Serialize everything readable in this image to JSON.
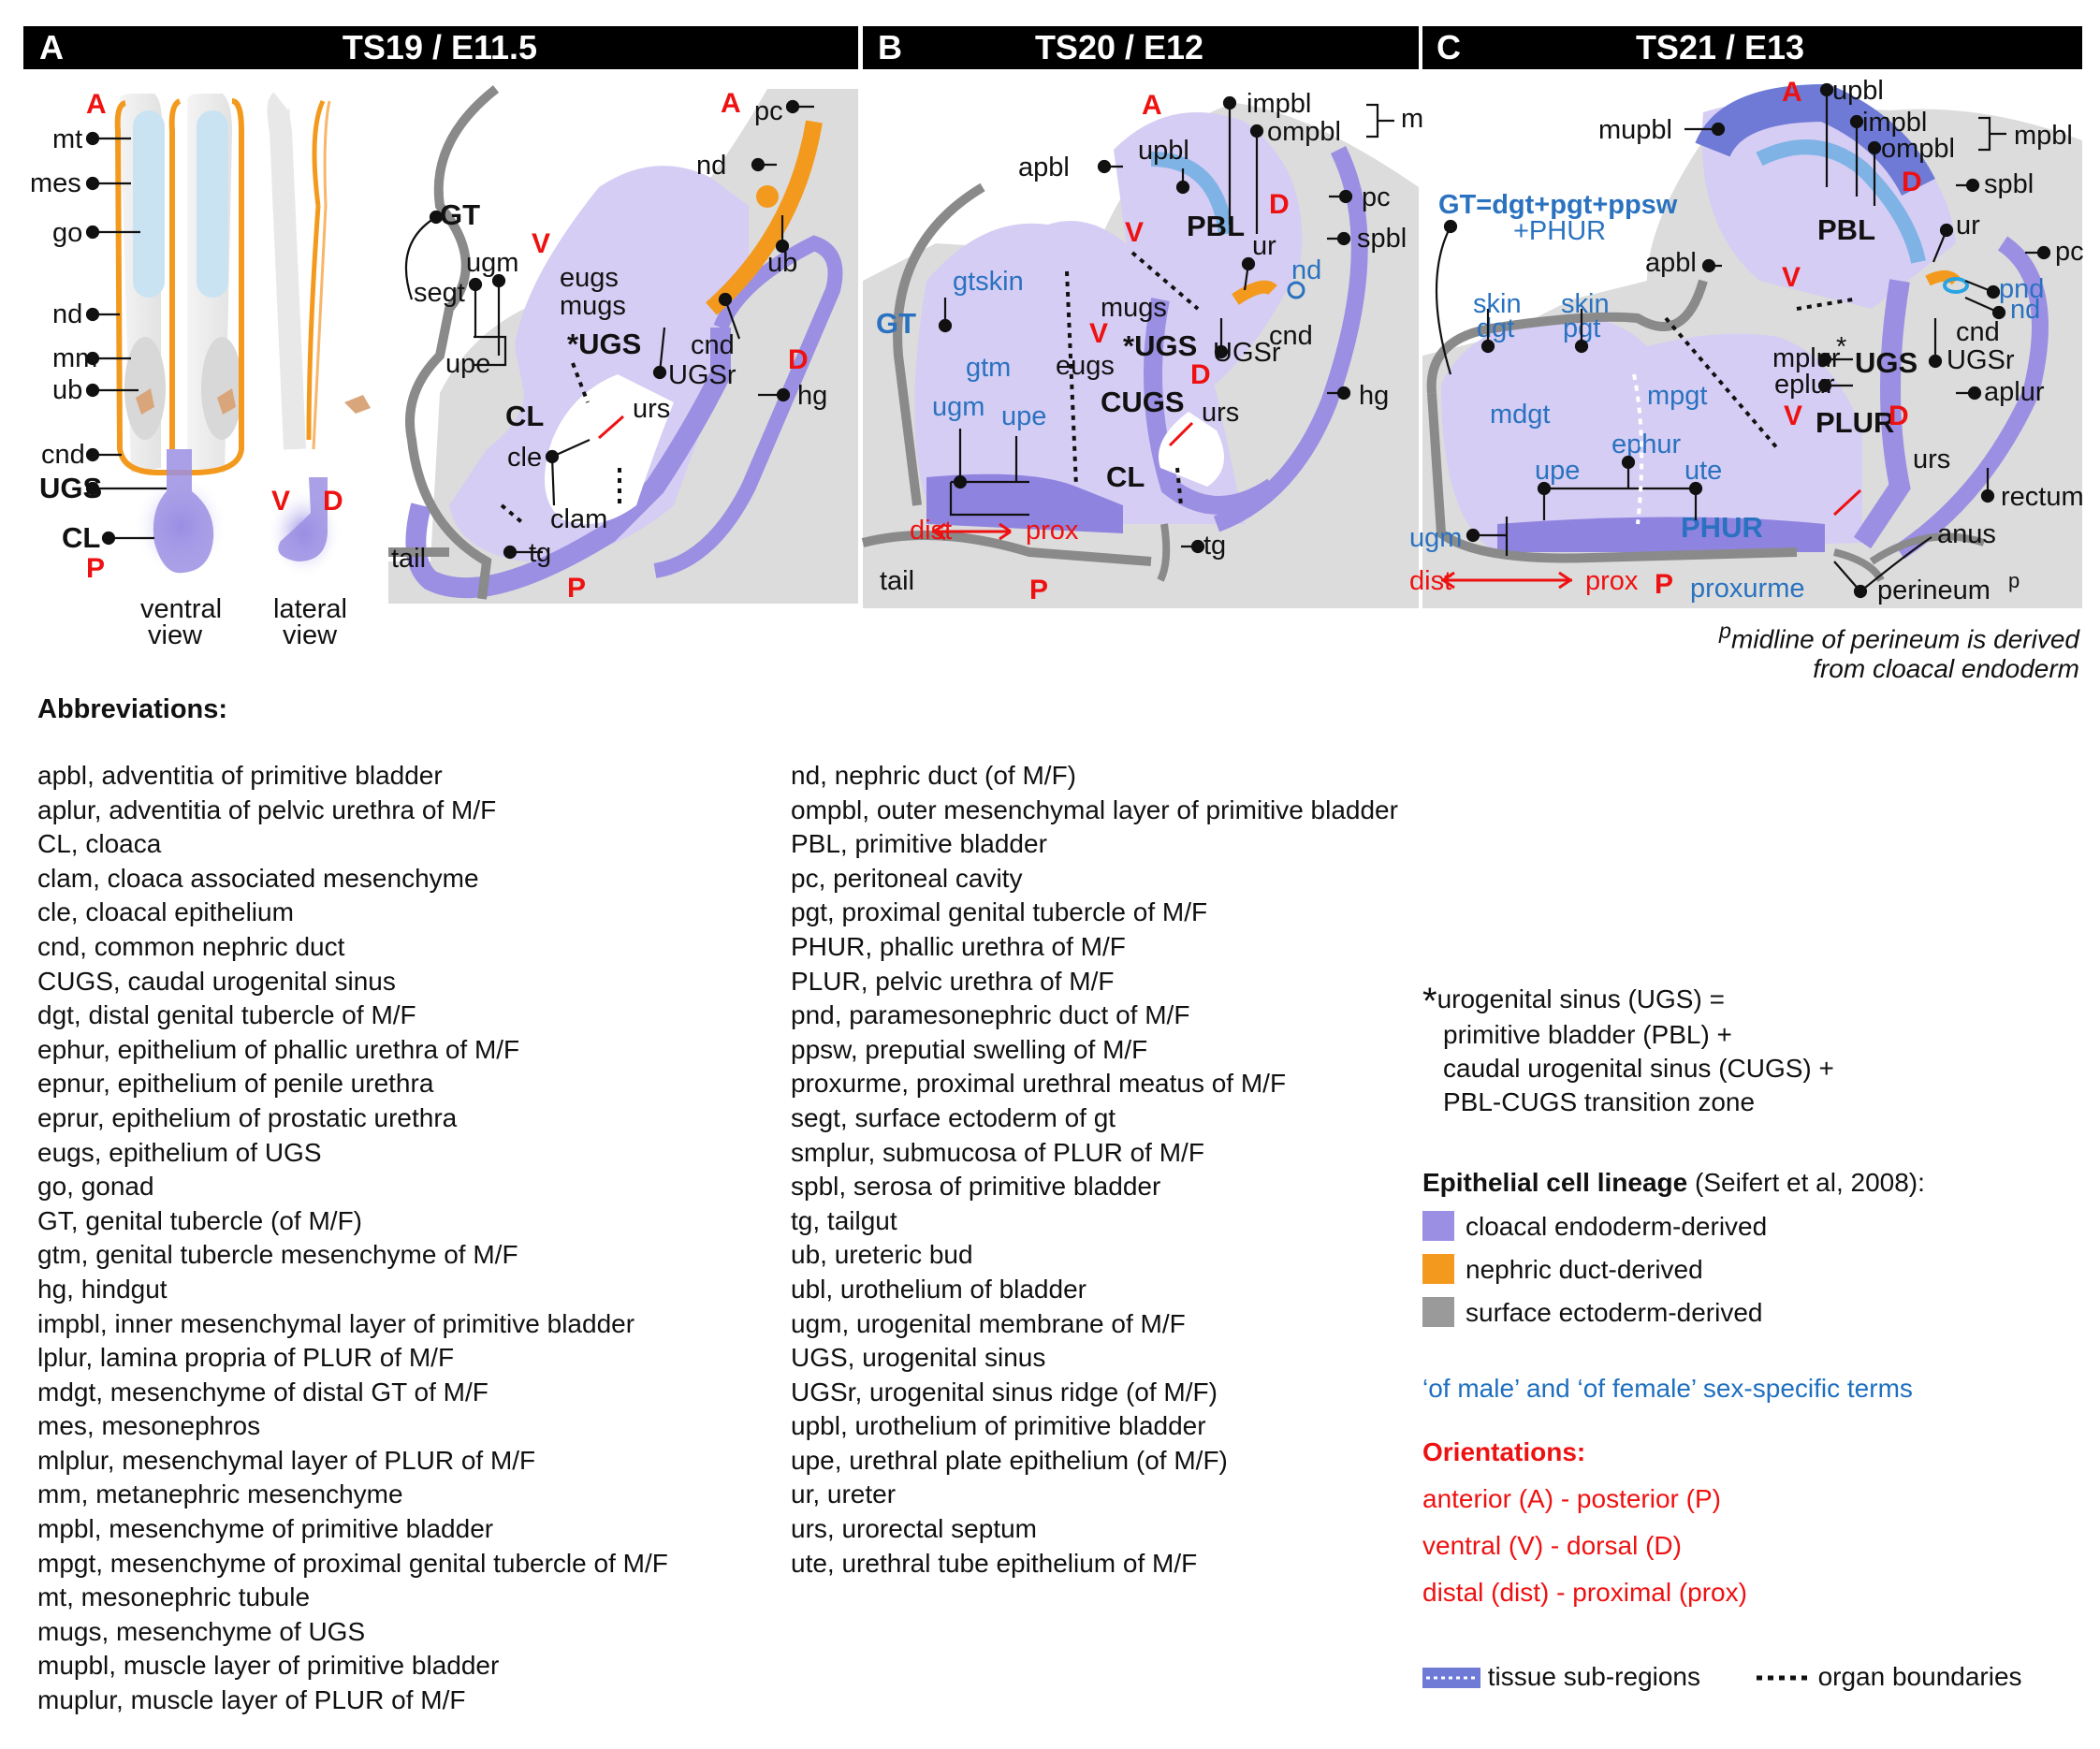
{
  "panels": {
    "a": {
      "letter": "A",
      "title": "TS19 / E11.5"
    },
    "b": {
      "letter": "B",
      "title": "TS20 / E12"
    },
    "c": {
      "letter": "C",
      "title": "TS21 / E13"
    }
  },
  "labels_a": {
    "mt": "mt",
    "mes": "mes",
    "go": "go",
    "nd": "nd",
    "mm": "mm",
    "ub": "ub",
    "cnd": "cnd",
    "ugs": "UGS",
    "cl": "CL",
    "ventral": "ventral",
    "view": "view",
    "lateral": "lateral",
    "gt": "GT",
    "segt": "segt",
    "ugm": "ugm",
    "upe": "upe",
    "eugs": "eugs",
    "mugs": "mugs",
    "ugs2": "*UGS",
    "cnd2": "cnd",
    "ugsr": "UGSr",
    "ub2": "ub",
    "nd2": "nd",
    "pc": "pc",
    "urs": "urs",
    "hg": "hg",
    "cle": "cle",
    "clam": "clam",
    "tg": "tg",
    "tail": "tail",
    "cl2": "CL"
  },
  "labels_b": {
    "impbl": "impbl",
    "ompbl": "ompbl",
    "mpbl": "mpbl",
    "apbl": "apbl",
    "upbl": "upbl",
    "pbl": "PBL",
    "pc": "pc",
    "spbl": "spbl",
    "gtskin": "gtskin",
    "gt": "GT",
    "gtm": "gtm",
    "ur": "ur",
    "nd": "nd",
    "mugs": "mugs",
    "eugs": "eugs",
    "ugs": "*UGS",
    "cnd": "cnd",
    "ugsr": "UGSr",
    "hg": "hg",
    "cugs": "CUGS",
    "ugm": "ugm",
    "upe": "upe",
    "urs": "urs",
    "cl": "CL",
    "dist": "dist",
    "prox": "prox",
    "tail": "tail",
    "tg": "tg"
  },
  "labels_c": {
    "upbl": "upbl",
    "impbl": "impbl",
    "ompbl": "ompbl",
    "mpbl": "mpbl",
    "mupbl": "mupbl",
    "spbl": "spbl",
    "gt_formula": "GT=dgt+pgt+ppsw",
    "gt_formula2": "+PHUR",
    "pbl": "PBL",
    "ur": "ur",
    "pc": "pc",
    "apbl": "apbl",
    "skin1": "skin",
    "dgt": "dgt",
    "skin2": "skin",
    "pgt": "pgt",
    "pnd": "pnd",
    "nd": "nd",
    "cnd": "cnd",
    "mplur": "mplur",
    "eplur": "eplur",
    "ugs": "UGS",
    "ugsr": "UGSr",
    "aplur": "aplur",
    "mdgt": "mdgt",
    "mpgt": "mpgt",
    "plur": "PLUR",
    "urs": "urs",
    "rectum": "rectum",
    "ephur": "ephur",
    "upe": "upe",
    "ute": "ute",
    "ugm": "ugm",
    "phur": "PHUR",
    "anus": "anus",
    "dist": "dist",
    "prox": "prox",
    "proxurme": "proxurme",
    "perineum": "perineum",
    "p_sup": "p"
  },
  "orient_marks": {
    "a": "A",
    "p": "P",
    "v": "V",
    "d": "D",
    "star": "*"
  },
  "perineum_note": {
    "sup": "p",
    "line1": "midline of perineum is derived",
    "line2": "from cloacal endoderm"
  },
  "abbreviations_title": "Abbreviations:",
  "abbreviations_col1": [
    "apbl, adventitia of primitive bladder",
    "aplur, adventitia of pelvic urethra of M/F",
    "CL, cloaca",
    "clam, cloaca associated mesenchyme",
    "cle, cloacal epithelium",
    "cnd, common nephric duct",
    "CUGS, caudal urogenital sinus",
    "dgt, distal genital tubercle of M/F",
    "ephur, epithelium of phallic urethra of M/F",
    "epnur, epithelium of penile urethra",
    "eprur, epithelium of prostatic urethra",
    "eugs, epithelium of UGS",
    "go, gonad",
    "GT, genital tubercle (of M/F)",
    "gtm, genital tubercle mesenchyme of M/F",
    "hg, hindgut",
    "impbl, inner mesenchymal layer of primitive bladder",
    "lplur, lamina propria of PLUR of M/F",
    "mdgt, mesenchyme of distal GT of M/F",
    "mes, mesonephros",
    "mlplur, mesenchymal layer of PLUR of M/F",
    "mm, metanephric mesenchyme",
    "mpbl, mesenchyme of primitive bladder",
    "mpgt, mesenchyme of proximal genital tubercle of M/F",
    "mt, mesonephric tubule",
    "mugs, mesenchyme of UGS",
    "mupbl, muscle layer of primitive bladder",
    "muplur, muscle layer of PLUR of M/F"
  ],
  "abbreviations_col2": [
    "nd, nephric duct (of M/F)",
    "ompbl, outer mesenchymal layer of primitive bladder",
    "PBL, primitive bladder",
    "pc, peritoneal cavity",
    "pgt, proximal genital tubercle of M/F",
    "PHUR, phallic urethra of M/F",
    "PLUR, pelvic urethra of M/F",
    "pnd, paramesonephric duct of M/F",
    "ppsw, preputial swelling of M/F",
    "proxurme, proximal urethral meatus of M/F",
    "segt, surface ectoderm of gt",
    "smplur, submucosa of PLUR of M/F",
    "spbl, serosa of primitive bladder",
    "tg, tailgut",
    "ub, ureteric bud",
    "ubl, urothelium of bladder",
    "ugm, urogenital membrane of M/F",
    "UGS, urogenital sinus",
    "UGSr, urogenital sinus ridge (of M/F)",
    "upbl, urothelium of primitive bladder",
    "upe, urethral plate epithelium (of M/F)",
    "ur, ureter",
    "urs, urorectal septum",
    "ute, urethral tube epithelium of M/F"
  ],
  "legend": {
    "ugs_star": "*",
    "ugs_lines": [
      "urogenital sinus (UGS) =",
      "primitive bladder (PBL) +",
      "caudal urogenital sinus (CUGS) +",
      "PBL-CUGS transition zone"
    ],
    "lineage_title": "Epithelial cell lineage",
    "lineage_cite": "(Seifert et al, 2008):",
    "lineage_items": [
      {
        "label": "cloacal endoderm-derived",
        "color": "#9b8fe3"
      },
      {
        "label": "nephric duct-derived",
        "color": "#f39a1e"
      },
      {
        "label": "surface ectoderm-derived",
        "color": "#9a9a9a"
      }
    ],
    "sex_specific": "‘of male’ and ‘of female’ sex-specific terms",
    "orient_title": "Orientations:",
    "orient_items": [
      "anterior (A) - posterior (P)",
      "ventral (V) - dorsal (D)",
      "distal (dist) - proximal (prox)"
    ],
    "tissue_subregions": "tissue sub-regions",
    "organ_boundaries": "organ boundaries"
  },
  "colors": {
    "header": "#000000",
    "endoderm": "#9b8fe3",
    "mesenchyme": "#d5cdf3",
    "nephric": "#f39a1e",
    "ectoderm": "#9a9a9a",
    "bg": "#dcdcdc",
    "bladder_muscle": "#6e7ad6",
    "bladder_epi": "#7fb3e6",
    "sex_specific": "#2a72c0",
    "orientation": "#e11111"
  }
}
